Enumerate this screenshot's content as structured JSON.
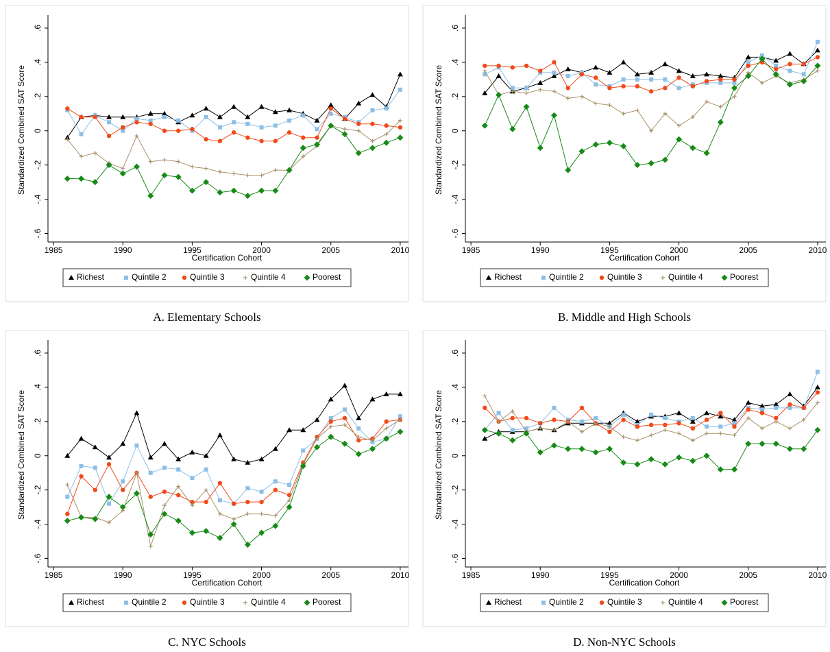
{
  "chart_data": [
    {
      "type": "line",
      "caption": "A. Elementary Schools",
      "x_label": "Certification Cohort",
      "y_label": "Standardized Combined SAT Score",
      "x": [
        1986,
        1987,
        1988,
        1989,
        1990,
        1991,
        1992,
        1993,
        1994,
        1995,
        1996,
        1997,
        1998,
        1999,
        2000,
        2001,
        2002,
        2003,
        2004,
        2005,
        2006,
        2007,
        2008,
        2009,
        2010
      ],
      "xlim": [
        1984.6,
        2010.4
      ],
      "xticks": [
        1985,
        1990,
        1995,
        2000,
        2005,
        2010
      ],
      "ylim": [
        -0.65,
        0.66
      ],
      "yticks": [
        {
          "value": 0.6,
          "label": ".6"
        },
        {
          "value": 0.4,
          "label": ".4"
        },
        {
          "value": 0.2,
          "label": ".2"
        },
        0,
        {
          "value": -0.2,
          "label": "-.2"
        },
        {
          "value": -0.4,
          "label": "-.4"
        },
        {
          "value": -0.6,
          "label": "-.6"
        }
      ],
      "series": [
        {
          "name": "Richest",
          "color": "#000000",
          "marker": "triangle",
          "values": [
            -0.04,
            0.08,
            0.09,
            0.08,
            0.08,
            0.08,
            0.1,
            0.1,
            0.05,
            0.09,
            0.13,
            0.08,
            0.14,
            0.08,
            0.14,
            0.11,
            0.12,
            0.1,
            0.06,
            0.15,
            0.07,
            0.16,
            0.21,
            0.14,
            0.33
          ]
        },
        {
          "name": "Quintile 2",
          "color": "#8cbfe6",
          "marker": "square",
          "values": [
            0.12,
            -0.02,
            0.09,
            0.05,
            0.0,
            0.07,
            0.06,
            0.08,
            0.06,
            0.0,
            0.08,
            0.02,
            0.05,
            0.04,
            0.02,
            0.03,
            0.06,
            0.09,
            0.01,
            0.1,
            0.08,
            0.05,
            0.12,
            0.13,
            0.24
          ]
        },
        {
          "name": "Quintile 3",
          "color": "#f04a1a",
          "marker": "circle",
          "values": [
            0.13,
            0.08,
            0.08,
            -0.03,
            0.02,
            0.05,
            0.04,
            0.0,
            0.0,
            0.01,
            -0.05,
            -0.06,
            -0.01,
            -0.04,
            -0.06,
            -0.06,
            -0.01,
            -0.04,
            -0.04,
            0.13,
            0.07,
            0.04,
            0.04,
            0.03,
            0.02
          ]
        },
        {
          "name": "Quintile 4",
          "color": "#a8926a",
          "marker": "plus",
          "values": [
            -0.05,
            -0.15,
            -0.13,
            -0.19,
            -0.22,
            -0.03,
            -0.18,
            -0.17,
            -0.18,
            -0.21,
            -0.22,
            -0.24,
            -0.25,
            -0.26,
            -0.26,
            -0.23,
            -0.23,
            -0.15,
            -0.09,
            0.03,
            0.01,
            0.0,
            -0.06,
            -0.02,
            0.06
          ]
        },
        {
          "name": "Poorest",
          "color": "#178a17",
          "marker": "diamond",
          "values": [
            -0.28,
            -0.28,
            -0.3,
            -0.2,
            -0.25,
            -0.21,
            -0.38,
            -0.26,
            -0.27,
            -0.35,
            -0.3,
            -0.36,
            -0.35,
            -0.38,
            -0.35,
            -0.35,
            -0.23,
            -0.1,
            -0.08,
            0.03,
            -0.02,
            -0.13,
            -0.1,
            -0.07,
            -0.04
          ]
        }
      ]
    },
    {
      "type": "line",
      "caption": "B. Middle and High Schools",
      "x_label": "Certification Cohort",
      "y_label": "Standardized Combined SAT Score",
      "x": [
        1986,
        1987,
        1988,
        1989,
        1990,
        1991,
        1992,
        1993,
        1994,
        1995,
        1996,
        1997,
        1998,
        1999,
        2000,
        2001,
        2002,
        2003,
        2004,
        2005,
        2006,
        2007,
        2008,
        2009,
        2010
      ],
      "xlim": [
        1984.6,
        2010.4
      ],
      "xticks": [
        1985,
        1990,
        1995,
        2000,
        2005,
        2010
      ],
      "ylim": [
        -0.65,
        0.66
      ],
      "yticks": [
        {
          "value": 0.6,
          "label": ".6"
        },
        {
          "value": 0.4,
          "label": ".4"
        },
        {
          "value": 0.2,
          "label": ".2"
        },
        0,
        {
          "value": -0.2,
          "label": "-.2"
        },
        {
          "value": -0.4,
          "label": "-.4"
        },
        {
          "value": -0.6,
          "label": "-.6"
        }
      ],
      "series": [
        {
          "name": "Richest",
          "color": "#000000",
          "marker": "triangle",
          "values": [
            0.22,
            0.32,
            0.23,
            0.25,
            0.28,
            0.32,
            0.36,
            0.34,
            0.37,
            0.34,
            0.4,
            0.33,
            0.34,
            0.39,
            0.35,
            0.32,
            0.33,
            0.32,
            0.31,
            0.43,
            0.43,
            0.41,
            0.45,
            0.39,
            0.47
          ]
        },
        {
          "name": "Quintile 2",
          "color": "#8cbfe6",
          "marker": "square",
          "values": [
            0.33,
            0.37,
            0.25,
            0.25,
            0.34,
            0.34,
            0.32,
            0.34,
            0.27,
            0.26,
            0.3,
            0.3,
            0.3,
            0.3,
            0.25,
            0.27,
            0.28,
            0.28,
            0.28,
            0.4,
            0.44,
            0.38,
            0.35,
            0.33,
            0.52
          ]
        },
        {
          "name": "Quintile 3",
          "color": "#f04a1a",
          "marker": "circle",
          "values": [
            0.38,
            0.38,
            0.37,
            0.38,
            0.35,
            0.4,
            0.25,
            0.33,
            0.31,
            0.25,
            0.26,
            0.26,
            0.23,
            0.25,
            0.31,
            0.26,
            0.29,
            0.3,
            0.3,
            0.38,
            0.4,
            0.36,
            0.39,
            0.39,
            0.43
          ]
        },
        {
          "name": "Quintile 4",
          "color": "#a8926a",
          "marker": "plus",
          "values": [
            0.35,
            0.21,
            0.23,
            0.22,
            0.24,
            0.23,
            0.19,
            0.2,
            0.16,
            0.15,
            0.1,
            0.12,
            0.0,
            0.1,
            0.03,
            0.08,
            0.17,
            0.14,
            0.2,
            0.34,
            0.28,
            0.32,
            0.28,
            0.3,
            0.35
          ]
        },
        {
          "name": "Poorest",
          "color": "#178a17",
          "marker": "diamond",
          "values": [
            0.03,
            0.21,
            0.01,
            0.14,
            -0.1,
            0.09,
            -0.23,
            -0.12,
            -0.08,
            -0.07,
            -0.09,
            -0.2,
            -0.19,
            -0.17,
            -0.05,
            -0.1,
            -0.13,
            0.05,
            0.25,
            0.32,
            0.42,
            0.33,
            0.27,
            0.29,
            0.38
          ]
        }
      ]
    },
    {
      "type": "line",
      "caption": "C. NYC Schools",
      "x_label": "Certification Cohort",
      "y_label": "Standardized Combined SAT Score",
      "x": [
        1986,
        1987,
        1988,
        1989,
        1990,
        1991,
        1992,
        1993,
        1994,
        1995,
        1996,
        1997,
        1998,
        1999,
        2000,
        2001,
        2002,
        2003,
        2004,
        2005,
        2006,
        2007,
        2008,
        2009,
        2010
      ],
      "xlim": [
        1984.6,
        2010.4
      ],
      "xticks": [
        1985,
        1990,
        1995,
        2000,
        2005,
        2010
      ],
      "ylim": [
        -0.65,
        0.66
      ],
      "yticks": [
        {
          "value": 0.6,
          "label": ".6"
        },
        {
          "value": 0.4,
          "label": ".4"
        },
        {
          "value": 0.2,
          "label": ".2"
        },
        0,
        {
          "value": -0.2,
          "label": "-.2"
        },
        {
          "value": -0.4,
          "label": "-.4"
        },
        {
          "value": -0.6,
          "label": "-.6"
        }
      ],
      "series": [
        {
          "name": "Richest",
          "color": "#000000",
          "marker": "triangle",
          "values": [
            0.0,
            0.1,
            0.05,
            -0.01,
            0.07,
            0.25,
            -0.01,
            0.07,
            -0.02,
            0.02,
            0.0,
            0.12,
            -0.02,
            -0.04,
            -0.02,
            0.04,
            0.15,
            0.15,
            0.21,
            0.33,
            0.41,
            0.22,
            0.33,
            0.36,
            0.36
          ]
        },
        {
          "name": "Quintile 2",
          "color": "#8cbfe6",
          "marker": "square",
          "values": [
            -0.24,
            -0.06,
            -0.07,
            -0.28,
            -0.15,
            0.06,
            -0.1,
            -0.07,
            -0.08,
            -0.13,
            -0.08,
            -0.26,
            -0.28,
            -0.19,
            -0.21,
            -0.15,
            -0.17,
            0.03,
            0.1,
            0.22,
            0.27,
            0.16,
            0.08,
            0.1,
            0.23
          ]
        },
        {
          "name": "Quintile 3",
          "color": "#f04a1a",
          "marker": "circle",
          "values": [
            -0.34,
            -0.12,
            -0.2,
            -0.05,
            -0.2,
            -0.1,
            -0.24,
            -0.21,
            -0.23,
            -0.27,
            -0.27,
            -0.16,
            -0.28,
            -0.27,
            -0.27,
            -0.2,
            -0.23,
            -0.04,
            0.11,
            0.2,
            0.22,
            0.09,
            0.1,
            0.2,
            0.21
          ]
        },
        {
          "name": "Quintile 4",
          "color": "#a8926a",
          "marker": "plus",
          "values": [
            -0.17,
            -0.36,
            -0.36,
            -0.39,
            -0.32,
            -0.1,
            -0.53,
            -0.29,
            -0.18,
            -0.29,
            -0.2,
            -0.34,
            -0.37,
            -0.34,
            -0.34,
            -0.35,
            -0.26,
            -0.05,
            0.1,
            0.17,
            0.18,
            0.11,
            0.09,
            0.16,
            0.21
          ]
        },
        {
          "name": "Poorest",
          "color": "#178a17",
          "marker": "diamond",
          "values": [
            -0.38,
            -0.36,
            -0.37,
            -0.24,
            -0.3,
            -0.22,
            -0.46,
            -0.34,
            -0.38,
            -0.45,
            -0.44,
            -0.48,
            -0.4,
            -0.52,
            -0.45,
            -0.41,
            -0.3,
            -0.06,
            0.05,
            0.11,
            0.07,
            0.01,
            0.04,
            0.1,
            0.14
          ]
        }
      ]
    },
    {
      "type": "line",
      "caption": "D. Non-NYC Schools",
      "x_label": "Certification Cohort",
      "y_label": "Standardized Combined SAT Score",
      "x": [
        1986,
        1987,
        1988,
        1989,
        1990,
        1991,
        1992,
        1993,
        1994,
        1995,
        1996,
        1997,
        1998,
        1999,
        2000,
        2001,
        2002,
        2003,
        2004,
        2005,
        2006,
        2007,
        2008,
        2009,
        2010
      ],
      "xlim": [
        1984.6,
        2010.4
      ],
      "xticks": [
        1985,
        1990,
        1995,
        2000,
        2005,
        2010
      ],
      "ylim": [
        -0.65,
        0.66
      ],
      "yticks": [
        {
          "value": 0.6,
          "label": ".6"
        },
        {
          "value": 0.4,
          "label": ".4"
        },
        {
          "value": 0.2,
          "label": ".2"
        },
        0,
        {
          "value": -0.2,
          "label": "-.2"
        },
        {
          "value": -0.4,
          "label": "-.4"
        },
        {
          "value": -0.6,
          "label": "-.6"
        }
      ],
      "series": [
        {
          "name": "Richest",
          "color": "#000000",
          "marker": "triangle",
          "values": [
            0.1,
            0.14,
            0.14,
            0.14,
            0.16,
            0.15,
            0.19,
            0.19,
            0.19,
            0.19,
            0.25,
            0.2,
            0.23,
            0.23,
            0.25,
            0.2,
            0.25,
            0.23,
            0.21,
            0.31,
            0.29,
            0.3,
            0.36,
            0.29,
            0.4
          ]
        },
        {
          "name": "Quintile 2",
          "color": "#8cbfe6",
          "marker": "square",
          "values": [
            0.15,
            0.25,
            0.15,
            0.16,
            0.19,
            0.28,
            0.21,
            0.2,
            0.22,
            0.17,
            0.24,
            0.18,
            0.24,
            0.22,
            0.2,
            0.22,
            0.17,
            0.17,
            0.19,
            0.28,
            0.27,
            0.28,
            0.28,
            0.28,
            0.49
          ]
        },
        {
          "name": "Quintile 3",
          "color": "#f04a1a",
          "marker": "circle",
          "values": [
            0.28,
            0.2,
            0.22,
            0.22,
            0.19,
            0.21,
            0.2,
            0.28,
            0.19,
            0.14,
            0.21,
            0.17,
            0.18,
            0.18,
            0.19,
            0.16,
            0.21,
            0.25,
            0.17,
            0.27,
            0.25,
            0.22,
            0.3,
            0.28,
            0.37
          ]
        },
        {
          "name": "Quintile 4",
          "color": "#a8926a",
          "marker": "plus",
          "values": [
            0.35,
            0.2,
            0.26,
            0.14,
            0.16,
            0.15,
            0.2,
            0.14,
            0.19,
            0.17,
            0.11,
            0.09,
            0.12,
            0.15,
            0.13,
            0.09,
            0.13,
            0.13,
            0.12,
            0.22,
            0.16,
            0.2,
            0.16,
            0.21,
            0.31
          ]
        },
        {
          "name": "Poorest",
          "color": "#178a17",
          "marker": "diamond",
          "values": [
            0.15,
            0.13,
            0.09,
            0.13,
            0.02,
            0.06,
            0.04,
            0.04,
            0.02,
            0.04,
            -0.04,
            -0.05,
            -0.02,
            -0.05,
            -0.01,
            -0.03,
            0.0,
            -0.08,
            -0.08,
            0.07,
            0.07,
            0.07,
            0.04,
            0.04,
            0.15
          ]
        }
      ]
    }
  ]
}
